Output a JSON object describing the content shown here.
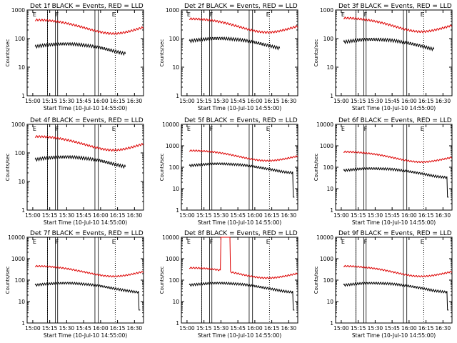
{
  "figure": {
    "xlabel": "Start Time (10-Jul-10 14:55:00)",
    "ylabel": "Counts/sec",
    "x_ticks": [
      "15:00",
      "15:15",
      "15:30",
      "15:45",
      "16:00",
      "16:15",
      "16:30"
    ],
    "y_ticks_1e3": [
      "1",
      "10",
      "100",
      "1000"
    ],
    "y_ticks_1e4": [
      "1",
      "10",
      "100",
      "1000",
      "10000"
    ],
    "flag_letters": [
      "E",
      "F",
      "E"
    ],
    "colors": {
      "events": "#000000",
      "lld": "#dd0000",
      "axis": "#000000",
      "background": "#ffffff"
    }
  },
  "chart_data": [
    {
      "type": "line",
      "title": "Det 1f BLACK = Events, RED = LLD",
      "x_time_range": [
        "14:55",
        "16:38"
      ],
      "ylim": [
        1,
        1000
      ],
      "y_log": true,
      "events": {
        "start": "15:02",
        "end": "16:22",
        "level": 45,
        "dropout": null
      },
      "lld": {
        "level": 300,
        "spike": null
      }
    },
    {
      "type": "line",
      "title": "Det 2f BLACK = Events, RED = LLD",
      "x_time_range": [
        "14:55",
        "16:38"
      ],
      "ylim": [
        1,
        1000
      ],
      "y_log": true,
      "events": {
        "start": "15:02",
        "end": "16:22",
        "level": 70,
        "dropout": null
      },
      "lld": {
        "level": 330,
        "spike": null
      }
    },
    {
      "type": "line",
      "title": "Det 3f BLACK = Events, RED = LLD",
      "x_time_range": [
        "14:55",
        "16:38"
      ],
      "ylim": [
        1,
        1000
      ],
      "y_log": true,
      "events": {
        "start": "15:02",
        "end": "16:22",
        "level": 65,
        "dropout": null
      },
      "lld": {
        "level": 350,
        "spike": null
      }
    },
    {
      "type": "line",
      "title": "Det 4f BLACK = Events, RED = LLD",
      "x_time_range": [
        "14:55",
        "16:38"
      ],
      "ylim": [
        1,
        1000
      ],
      "y_log": true,
      "events": {
        "start": "15:02",
        "end": "16:22",
        "level": 50,
        "dropout": null
      },
      "lld": {
        "level": 250,
        "spike": null
      }
    },
    {
      "type": "line",
      "title": "Det 5f BLACK = Events, RED = LLD",
      "x_time_range": [
        "14:55",
        "16:38"
      ],
      "ylim": [
        1,
        10000
      ],
      "y_log": true,
      "events": {
        "start": "15:02",
        "end": "16:35",
        "level": 100,
        "dropout": "16:34"
      },
      "lld": {
        "level": 400,
        "spike": null
      }
    },
    {
      "type": "line",
      "title": "Det 6f BLACK = Events, RED = LLD",
      "x_time_range": [
        "14:55",
        "16:38"
      ],
      "ylim": [
        1,
        10000
      ],
      "y_log": true,
      "events": {
        "start": "15:02",
        "end": "16:35",
        "level": 60,
        "dropout": "16:34"
      },
      "lld": {
        "level": 350,
        "spike": null
      }
    },
    {
      "type": "line",
      "title": "Det 7f BLACK = Events, RED = LLD",
      "x_time_range": [
        "14:55",
        "16:38"
      ],
      "ylim": [
        1,
        10000
      ],
      "y_log": true,
      "events": {
        "start": "15:02",
        "end": "16:35",
        "level": 50,
        "dropout": "16:34"
      },
      "lld": {
        "level": 300,
        "spike": null
      }
    },
    {
      "type": "line",
      "title": "Det 8f BLACK = Events, RED = LLD",
      "x_time_range": [
        "14:55",
        "16:38"
      ],
      "ylim": [
        1,
        10000
      ],
      "y_log": true,
      "events": {
        "start": "15:02",
        "end": "16:35",
        "level": 50,
        "dropout": "16:34"
      },
      "lld": {
        "level": 250,
        "spike": [
          "15:30",
          "15:38"
        ]
      }
    },
    {
      "type": "line",
      "title": "Det 9f BLACK = Events, RED = LLD",
      "x_time_range": [
        "14:55",
        "16:38"
      ],
      "ylim": [
        1,
        10000
      ],
      "y_log": true,
      "events": {
        "start": "15:02",
        "end": "16:35",
        "level": 50,
        "dropout": "16:34"
      },
      "lld": {
        "level": 300,
        "spike": null
      }
    }
  ]
}
